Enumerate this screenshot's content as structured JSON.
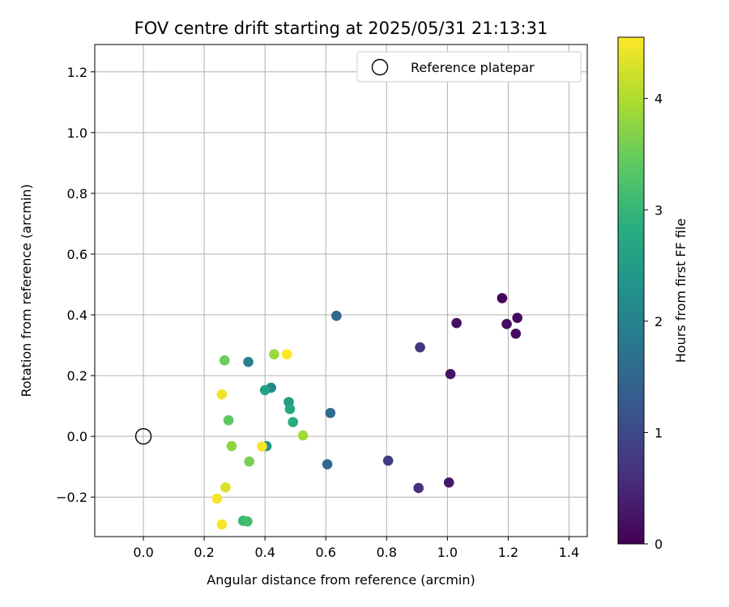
{
  "chart_data": {
    "type": "scatter",
    "title": "FOV centre drift starting at 2025/05/31 21:13:31",
    "xlabel": "Angular distance from reference (arcmin)",
    "ylabel": "Rotation from reference (arcmin)",
    "xlim": [
      -0.16,
      1.46
    ],
    "ylim": [
      -0.33,
      1.29
    ],
    "xticks": [
      0.0,
      0.2,
      0.4,
      0.6,
      0.8,
      1.0,
      1.2,
      1.4
    ],
    "xtick_labels": [
      "0.0",
      "0.2",
      "0.4",
      "0.6",
      "0.8",
      "1.0",
      "1.2",
      "1.4"
    ],
    "yticks": [
      -0.2,
      0.0,
      0.2,
      0.4,
      0.6,
      0.8,
      1.0,
      1.2
    ],
    "ytick_labels": [
      "−0.2",
      "0.0",
      "0.2",
      "0.4",
      "0.6",
      "0.8",
      "1.0",
      "1.2"
    ],
    "grid": true,
    "legend": {
      "position": "top-right",
      "entries": [
        "Reference platepar"
      ]
    },
    "reference_point": {
      "x": 0.0,
      "y": 0.0
    },
    "colorbar": {
      "label": "Hours from first FF file",
      "colormap": "viridis",
      "range": [
        0,
        4.55
      ],
      "ticks": [
        0,
        1,
        2,
        3,
        4
      ],
      "tick_labels": [
        "0",
        "1",
        "2",
        "3",
        "4"
      ]
    },
    "points": [
      {
        "x": 1.18,
        "y": 0.455,
        "hours": 0.05
      },
      {
        "x": 1.23,
        "y": 0.39,
        "hours": 0.1
      },
      {
        "x": 1.195,
        "y": 0.37,
        "hours": 0.15
      },
      {
        "x": 1.03,
        "y": 0.373,
        "hours": 0.2
      },
      {
        "x": 1.225,
        "y": 0.338,
        "hours": 0.15
      },
      {
        "x": 1.01,
        "y": 0.205,
        "hours": 0.25
      },
      {
        "x": 1.005,
        "y": -0.152,
        "hours": 0.3
      },
      {
        "x": 0.91,
        "y": 0.293,
        "hours": 0.7
      },
      {
        "x": 0.905,
        "y": -0.17,
        "hours": 0.6
      },
      {
        "x": 0.805,
        "y": -0.08,
        "hours": 0.8
      },
      {
        "x": 0.635,
        "y": 0.397,
        "hours": 1.5
      },
      {
        "x": 0.615,
        "y": 0.077,
        "hours": 1.6
      },
      {
        "x": 0.605,
        "y": -0.092,
        "hours": 1.55
      },
      {
        "x": 0.345,
        "y": 0.245,
        "hours": 2.0
      },
      {
        "x": 0.42,
        "y": 0.16,
        "hours": 2.1
      },
      {
        "x": 0.405,
        "y": -0.032,
        "hours": 2.3
      },
      {
        "x": 0.478,
        "y": 0.113,
        "hours": 2.5
      },
      {
        "x": 0.4,
        "y": 0.152,
        "hours": 2.6
      },
      {
        "x": 0.482,
        "y": 0.09,
        "hours": 2.7
      },
      {
        "x": 0.492,
        "y": 0.047,
        "hours": 2.8
      },
      {
        "x": 0.328,
        "y": -0.278,
        "hours": 3.05
      },
      {
        "x": 0.342,
        "y": -0.28,
        "hours": 3.15
      },
      {
        "x": 0.28,
        "y": 0.053,
        "hours": 3.4
      },
      {
        "x": 0.267,
        "y": 0.25,
        "hours": 3.5
      },
      {
        "x": 0.348,
        "y": -0.083,
        "hours": 3.6
      },
      {
        "x": 0.29,
        "y": -0.032,
        "hours": 3.75
      },
      {
        "x": 0.43,
        "y": 0.27,
        "hours": 3.85
      },
      {
        "x": 0.525,
        "y": 0.003,
        "hours": 3.9
      },
      {
        "x": 0.27,
        "y": -0.168,
        "hours": 4.3
      },
      {
        "x": 0.258,
        "y": 0.138,
        "hours": 4.45
      },
      {
        "x": 0.242,
        "y": -0.205,
        "hours": 4.5
      },
      {
        "x": 0.258,
        "y": -0.29,
        "hours": 4.5
      },
      {
        "x": 0.39,
        "y": -0.033,
        "hours": 4.5
      },
      {
        "x": 0.472,
        "y": 0.27,
        "hours": 4.55
      }
    ]
  }
}
